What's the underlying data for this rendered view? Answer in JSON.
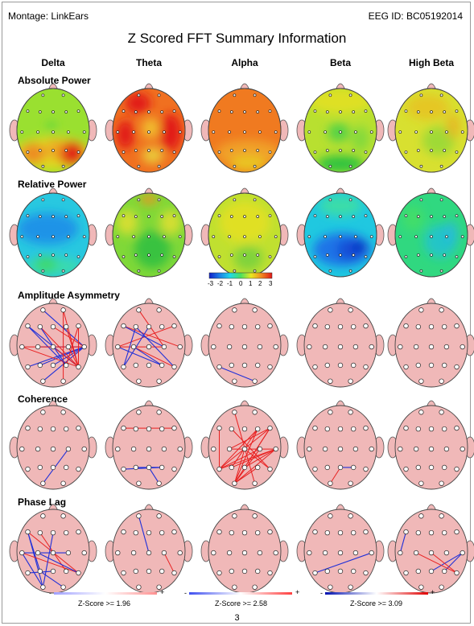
{
  "header": {
    "montage_label": "Montage:  LinkEars",
    "eeg_id_label": "EEG ID:  BC05192014",
    "title": "Z Scored FFT Summary Information"
  },
  "bands": [
    "Delta",
    "Theta",
    "Alpha",
    "Beta",
    "High Beta"
  ],
  "sections": {
    "absolute_power": "Absolute Power",
    "relative_power": "Relative Power",
    "amplitude_asymmetry": "Amplitude Asymmetry",
    "coherence": "Coherence",
    "phase_lag": "Phase Lag"
  },
  "colorbar": {
    "ticks": [
      "-3",
      "-2",
      "-1",
      "0",
      "1",
      "2",
      "3"
    ],
    "colors": [
      "#1020c8",
      "#1a80e8",
      "#20d8e8",
      "#48e060",
      "#e8e820",
      "#f08820",
      "#e01818"
    ]
  },
  "legend": [
    {
      "label": "Z-Score >= 1.96",
      "minus": "-",
      "plus": "+"
    },
    {
      "label": "Z-Score >= 2.58",
      "minus": "-",
      "plus": "+"
    },
    {
      "label": "Z-Score >= 3.09",
      "minus": "-",
      "plus": "+"
    }
  ],
  "page_number": "3",
  "maps": {
    "absolute_power": [
      {
        "base": "#9ae030",
        "blobs": [
          {
            "c": "#e8d820",
            "sx": 0,
            "sy": 0.55,
            "rx": 1.1,
            "ry": 0.4,
            "o": 0.9
          },
          {
            "c": "#f08020",
            "sx": -0.55,
            "sy": 0.55,
            "rx": 0.35,
            "ry": 0.25,
            "o": 0.85
          },
          {
            "c": "#e01818",
            "sx": 0.5,
            "sy": 0.55,
            "rx": 0.38,
            "ry": 0.28,
            "o": 0.95
          },
          {
            "c": "#f0a020",
            "sx": 0.05,
            "sy": 0.45,
            "rx": 0.25,
            "ry": 0.25,
            "o": 0.8
          },
          {
            "c": "#48d040",
            "sx": -0.05,
            "sy": -0.1,
            "rx": 0.12,
            "ry": 0.1,
            "o": 0.9
          }
        ]
      },
      {
        "base": "#f07020",
        "blobs": [
          {
            "c": "#e01818",
            "sx": -0.3,
            "sy": -0.65,
            "rx": 0.35,
            "ry": 0.25,
            "o": 0.95
          },
          {
            "c": "#e01818",
            "sx": -0.65,
            "sy": 0.1,
            "rx": 0.25,
            "ry": 0.35,
            "o": 0.95
          },
          {
            "c": "#e01818",
            "sx": 0.6,
            "sy": 0.05,
            "rx": 0.3,
            "ry": 0.45,
            "o": 0.95
          },
          {
            "c": "#f0c030",
            "sx": 0.05,
            "sy": -0.05,
            "rx": 0.25,
            "ry": 0.25,
            "o": 0.95
          },
          {
            "c": "#e8e040",
            "sx": 0.1,
            "sy": 0.6,
            "rx": 0.3,
            "ry": 0.2,
            "o": 0.8
          }
        ]
      },
      {
        "base": "#f07a20",
        "blobs": [
          {
            "c": "#f0a828",
            "sx": 0.1,
            "sy": 0.55,
            "rx": 0.9,
            "ry": 0.32,
            "o": 0.85
          },
          {
            "c": "#e8d020",
            "sx": 0.1,
            "sy": 0.8,
            "rx": 0.5,
            "ry": 0.2,
            "o": 0.8
          }
        ]
      },
      {
        "base": "#b8e030",
        "blobs": [
          {
            "c": "#e8e020",
            "sx": 0,
            "sy": -0.7,
            "rx": 0.9,
            "ry": 0.3,
            "o": 0.8
          },
          {
            "c": "#48d048",
            "sx": -0.05,
            "sy": 0.05,
            "rx": 0.3,
            "ry": 0.22,
            "o": 0.9
          },
          {
            "c": "#20c040",
            "sx": 0,
            "sy": 0.8,
            "rx": 0.65,
            "ry": 0.2,
            "o": 0.9
          },
          {
            "c": "#78d840",
            "sx": 0.55,
            "sy": 0.2,
            "rx": 0.25,
            "ry": 0.3,
            "o": 0.8
          }
        ]
      },
      {
        "base": "#d8e030",
        "blobs": [
          {
            "c": "#e8c020",
            "sx": -0.1,
            "sy": -0.55,
            "rx": 0.6,
            "ry": 0.3,
            "o": 0.8
          },
          {
            "c": "#90d838",
            "sx": 0.2,
            "sy": 0.25,
            "rx": 0.45,
            "ry": 0.35,
            "o": 0.8
          },
          {
            "c": "#e8b020",
            "sx": 0.6,
            "sy": -0.1,
            "rx": 0.2,
            "ry": 0.3,
            "o": 0.75
          }
        ]
      }
    ],
    "relative_power": [
      {
        "base": "#28c8e0",
        "blobs": [
          {
            "c": "#1a90e8",
            "sx": -0.15,
            "sy": -0.15,
            "rx": 0.85,
            "ry": 0.38,
            "o": 0.95
          },
          {
            "c": "#40e0a0",
            "sx": 0,
            "sy": 0.75,
            "rx": 0.8,
            "ry": 0.2,
            "o": 0.8
          },
          {
            "c": "#40d860",
            "sx": -0.2,
            "sy": 0.7,
            "rx": 0.3,
            "ry": 0.2,
            "o": 0.8
          }
        ]
      },
      {
        "base": "#80d838",
        "blobs": [
          {
            "c": "#f09020",
            "sx": 0,
            "sy": -0.85,
            "rx": 0.25,
            "ry": 0.12,
            "o": 0.9
          },
          {
            "c": "#e8e030",
            "sx": -0.6,
            "sy": -0.3,
            "rx": 0.3,
            "ry": 0.3,
            "o": 0.8
          },
          {
            "c": "#e8e030",
            "sx": 0.6,
            "sy": -0.3,
            "rx": 0.3,
            "ry": 0.3,
            "o": 0.8
          },
          {
            "c": "#30c040",
            "sx": 0.1,
            "sy": 0.35,
            "rx": 0.5,
            "ry": 0.45,
            "o": 0.9
          }
        ]
      },
      {
        "base": "#c0e030",
        "blobs": [
          {
            "c": "#e8e020",
            "sx": 0,
            "sy": -0.3,
            "rx": 0.7,
            "ry": 0.5,
            "o": 0.8
          },
          {
            "c": "#70d040",
            "sx": 0.1,
            "sy": 0.55,
            "rx": 0.4,
            "ry": 0.3,
            "o": 0.8
          }
        ]
      },
      {
        "base": "#20c8e0",
        "blobs": [
          {
            "c": "#40e0a0",
            "sx": 0,
            "sy": -0.7,
            "rx": 0.6,
            "ry": 0.25,
            "o": 0.85
          },
          {
            "c": "#1a70e8",
            "sx": 0.05,
            "sy": 0.35,
            "rx": 0.8,
            "ry": 0.4,
            "o": 0.95
          },
          {
            "c": "#0818b0",
            "sx": 0.5,
            "sy": 0.3,
            "rx": 0.2,
            "ry": 0.17,
            "o": 0.95
          },
          {
            "c": "#1040d0",
            "sx": 0.25,
            "sy": 0.35,
            "rx": 0.35,
            "ry": 0.25,
            "o": 0.7
          }
        ]
      },
      {
        "base": "#30d880",
        "blobs": [
          {
            "c": "#20c0d8",
            "sx": 0.25,
            "sy": 0.15,
            "rx": 0.45,
            "ry": 0.4,
            "o": 0.8
          },
          {
            "c": "#48e060",
            "sx": -0.5,
            "sy": -0.4,
            "rx": 0.3,
            "ry": 0.3,
            "o": 0.7
          },
          {
            "c": "#28b8e0",
            "sx": 0.55,
            "sy": -0.05,
            "rx": 0.2,
            "ry": 0.3,
            "o": 0.7
          }
        ]
      }
    ],
    "amplitude_asymmetry": [
      {
        "lines": [
          [
            "O1",
            "T4",
            "b"
          ],
          [
            "P3",
            "T4",
            "b"
          ],
          [
            "T5",
            "T4",
            "b"
          ],
          [
            "C3",
            "T4",
            "b"
          ],
          [
            "Pz",
            "T4",
            "b"
          ],
          [
            "F7",
            "P4",
            "b"
          ],
          [
            "F7",
            "T6",
            "b"
          ],
          [
            "Fp1",
            "T4",
            "b"
          ],
          [
            "T3",
            "T4",
            "r"
          ],
          [
            "Fp2",
            "T6",
            "r"
          ],
          [
            "F4",
            "T6",
            "r"
          ],
          [
            "F8",
            "T6",
            "r"
          ],
          [
            "C4",
            "T6",
            "r"
          ],
          [
            "Fz",
            "T4",
            "r"
          ],
          [
            "F3",
            "T6",
            "r"
          ],
          [
            "T3",
            "T6",
            "r"
          ],
          [
            "Fp2",
            "O2",
            "r"
          ],
          [
            "F8",
            "P4",
            "r"
          ],
          [
            "Cz",
            "T6",
            "r"
          ],
          [
            "F3",
            "P4",
            "b"
          ]
        ]
      },
      {
        "lines": [
          [
            "T3",
            "F8",
            "r"
          ],
          [
            "T3",
            "C4",
            "r"
          ],
          [
            "C3",
            "T6",
            "r"
          ],
          [
            "F7",
            "T4",
            "r"
          ],
          [
            "T5",
            "F3",
            "b"
          ],
          [
            "T3",
            "P4",
            "b"
          ],
          [
            "F7",
            "C4",
            "b"
          ],
          [
            "T5",
            "Fz",
            "b"
          ],
          [
            "C3",
            "P4",
            "b"
          ],
          [
            "F3",
            "T6",
            "b"
          ],
          [
            "Fp1",
            "C4",
            "r"
          ]
        ]
      },
      {
        "lines": [
          [
            "T5",
            "O2",
            "b"
          ]
        ]
      },
      {
        "lines": []
      },
      {
        "lines": []
      }
    ],
    "coherence": [
      {
        "lines": [
          [
            "O1",
            "C4",
            "b"
          ]
        ]
      },
      {
        "lines": [
          [
            "F7",
            "F8",
            "r"
          ],
          [
            "Pz",
            "P4",
            "b"
          ],
          [
            "Pz",
            "O2",
            "b"
          ],
          [
            "P3",
            "P4",
            "b"
          ],
          [
            "T5",
            "P4",
            "b"
          ]
        ]
      },
      {
        "lines": [
          [
            "O1",
            "F8",
            "r"
          ],
          [
            "O1",
            "C4",
            "r"
          ],
          [
            "O1",
            "T4",
            "r"
          ],
          [
            "O1",
            "F4",
            "r"
          ],
          [
            "O1",
            "P4",
            "r"
          ],
          [
            "O1",
            "Cz",
            "r"
          ],
          [
            "T5",
            "F4",
            "r"
          ],
          [
            "T5",
            "C4",
            "r"
          ],
          [
            "T5",
            "T4",
            "r"
          ],
          [
            "T5",
            "F8",
            "r"
          ],
          [
            "F7",
            "T5",
            "r"
          ],
          [
            "P3",
            "T4",
            "r"
          ],
          [
            "P3",
            "F4",
            "r"
          ],
          [
            "Pz",
            "F8",
            "r"
          ],
          [
            "C3",
            "T4",
            "r"
          ],
          [
            "Fp1",
            "O2",
            "r"
          ],
          [
            "F3",
            "T6",
            "r"
          ],
          [
            "Cz",
            "T6",
            "r"
          ],
          [
            "Pz",
            "T4",
            "r"
          ],
          [
            "C3",
            "F8",
            "r"
          ]
        ]
      },
      {
        "lines": [
          [
            "O1",
            "Pz",
            "r"
          ],
          [
            "Pz",
            "P4",
            "b"
          ]
        ]
      },
      {
        "lines": []
      }
    ],
    "phase_lag": [
      {
        "lines": [
          [
            "F7",
            "O1",
            "b"
          ],
          [
            "T3",
            "O1",
            "b"
          ],
          [
            "F7",
            "P3",
            "b"
          ],
          [
            "T3",
            "C4",
            "b"
          ],
          [
            "F7",
            "T6",
            "r"
          ],
          [
            "T3",
            "T6",
            "r"
          ],
          [
            "F3",
            "P4",
            "r"
          ],
          [
            "C3",
            "T6",
            "b"
          ],
          [
            "Fz",
            "O1",
            "b"
          ],
          [
            "P3",
            "O2",
            "b"
          ],
          [
            "T5",
            "Pz",
            "b"
          ]
        ]
      },
      {
        "lines": [
          [
            "Fp1",
            "Cz",
            "b"
          ],
          [
            "C4",
            "T6",
            "r"
          ]
        ]
      },
      {
        "lines": []
      },
      {
        "lines": [
          [
            "T5",
            "T4",
            "b"
          ]
        ]
      },
      {
        "lines": [
          [
            "F7",
            "T3",
            "b"
          ],
          [
            "Pz",
            "T4",
            "b"
          ],
          [
            "P4",
            "T4",
            "b"
          ],
          [
            "C3",
            "T6",
            "r"
          ],
          [
            "Cz",
            "T6",
            "r"
          ]
        ]
      }
    ]
  }
}
